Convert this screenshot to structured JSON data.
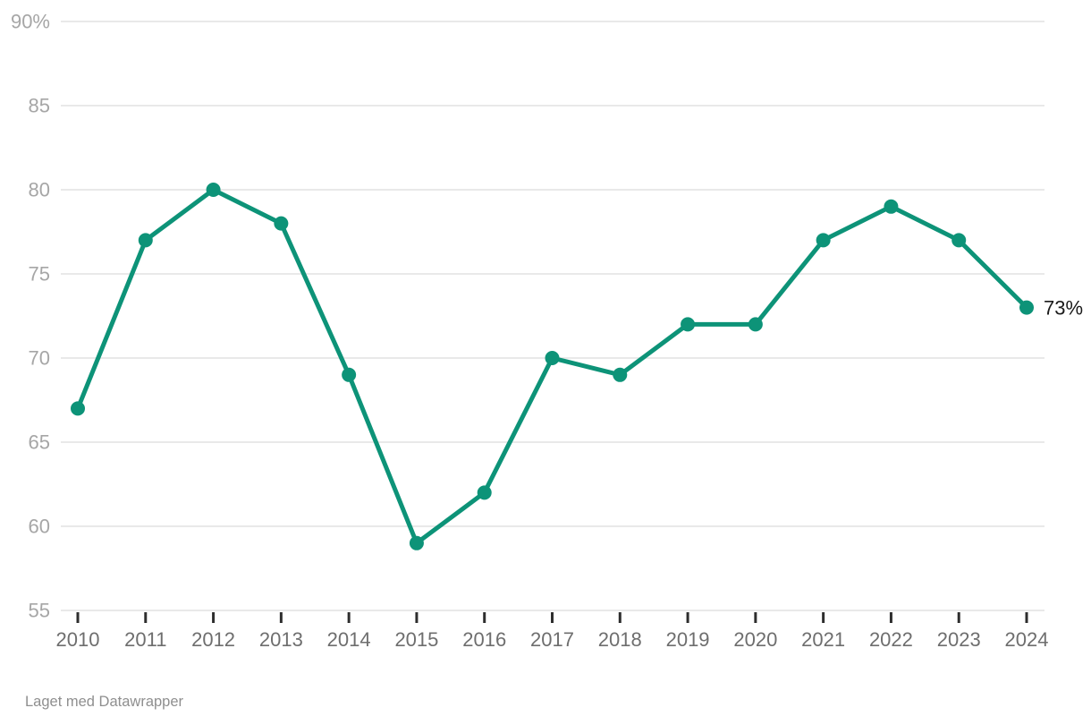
{
  "chart_data": {
    "type": "line",
    "title": "",
    "x": [
      "2010",
      "2011",
      "2012",
      "2013",
      "2014",
      "2015",
      "2016",
      "2017",
      "2018",
      "2019",
      "2020",
      "2021",
      "2022",
      "2023",
      "2024"
    ],
    "values": [
      67,
      77,
      80,
      78,
      69,
      59,
      62,
      70,
      69,
      72,
      72,
      77,
      79,
      77,
      73
    ],
    "unit": "%",
    "end_label": "73%",
    "ylim": [
      55,
      90
    ],
    "y_ticks": [
      55,
      60,
      65,
      70,
      75,
      80,
      85,
      90
    ],
    "y_tick_labels": [
      "55",
      "60",
      "65",
      "70",
      "75",
      "80",
      "85",
      "90%"
    ],
    "x_tick_labels": [
      "2010",
      "2011",
      "2012",
      "2013",
      "2014",
      "2015",
      "2016",
      "2017",
      "2018",
      "2019",
      "2020",
      "2021",
      "2022",
      "2023",
      "2024"
    ],
    "grid": "horizontal",
    "legend": "none"
  },
  "colors": {
    "line": "#0d9378",
    "grid": "#e9e9e9",
    "y_label": "#a6a6a6",
    "x_label": "#6e6e6e",
    "tick": "#2e2e2e",
    "end_label": "#1a1a1a",
    "footer": "#8f8f8f",
    "background": "#ffffff"
  },
  "footer": {
    "attribution": "Laget med Datawrapper"
  }
}
